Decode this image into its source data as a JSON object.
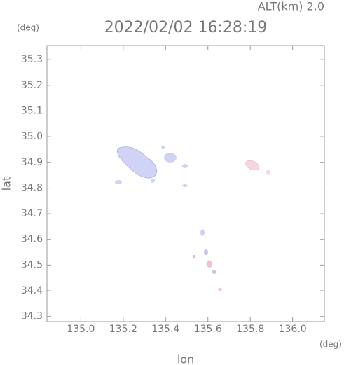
{
  "chart_data": {
    "type": "map",
    "title": "2022/02/02 16:28:19",
    "altitude_label": "ALT(km) 2.0",
    "y_unit": "(deg)",
    "x_unit": "(deg)",
    "xlabel": "lon",
    "ylabel": "lat",
    "xlim": [
      134.84,
      136.15
    ],
    "ylim": [
      34.28,
      35.355
    ],
    "xticks": [
      {
        "value": 135,
        "label": "135.0"
      },
      135.2,
      135.4,
      135.6,
      135.8,
      {
        "value": 136,
        "label": "136.0"
      }
    ],
    "yticks": [
      34.3,
      34.4,
      34.5,
      34.6,
      34.7,
      34.8,
      34.9,
      {
        "value": 35,
        "label": "35.0"
      },
      35.1,
      35.2,
      35.3
    ]
  }
}
